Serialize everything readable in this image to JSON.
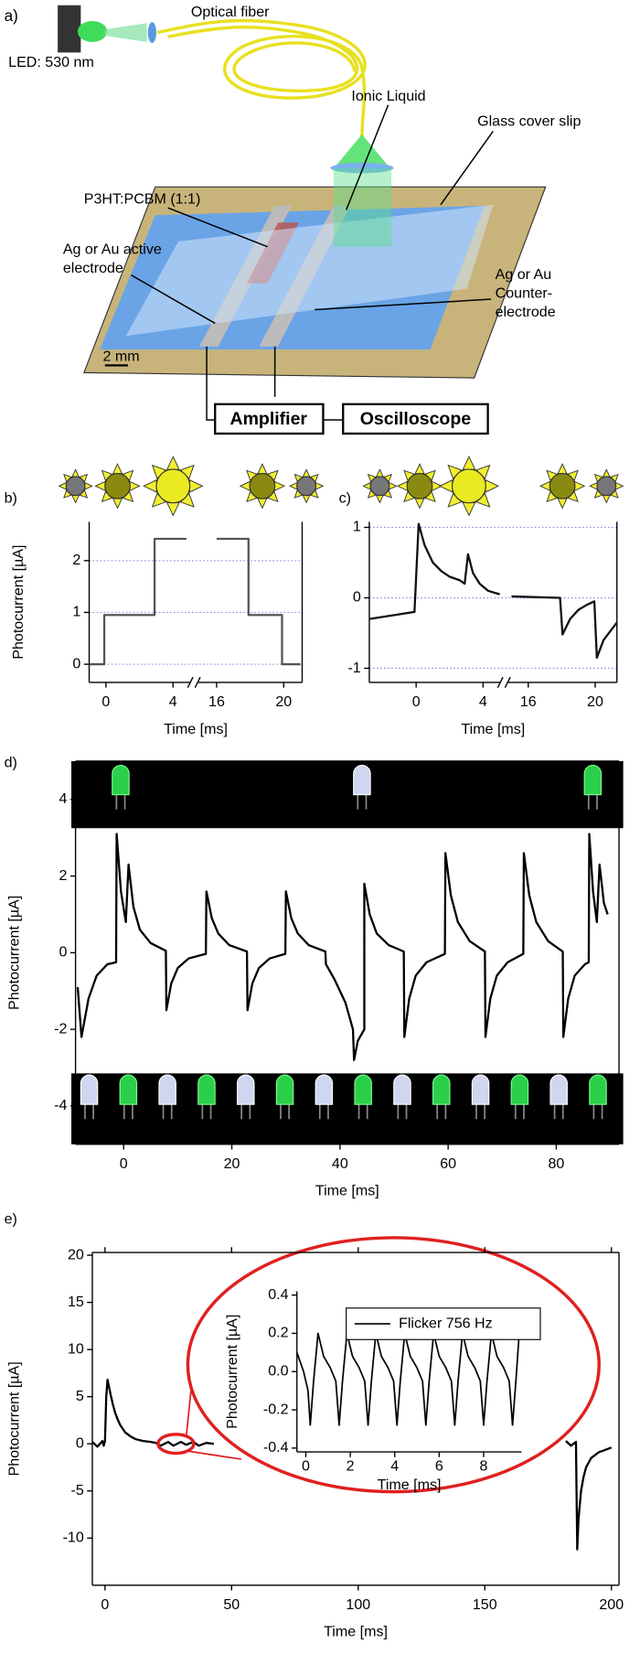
{
  "panel_a": {
    "label": "a)",
    "optical_fiber": "Optical fiber",
    "led": "LED: 530 nm",
    "ionic_liquid": "Ionic Liquid",
    "glass": "Glass cover slip",
    "p3ht": "P3HT:PCBM (1:1)",
    "active_electrode": [
      "Ag or Au active",
      "electrode"
    ],
    "counter_electrode": [
      "Ag or Au",
      "Counter-",
      "electrode"
    ],
    "scale_bar": "2 mm",
    "amplifier": "Amplifier",
    "oscilloscope": "Oscilloscope"
  },
  "chart_data": [
    {
      "type": "line",
      "label": "b)",
      "xlabel": "Time [ms]",
      "ylabel": "Photocurrent [µA]",
      "xlim": [
        -1,
        21.1
      ],
      "xbreak": [
        5,
        14.9
      ],
      "xticks": [
        0,
        4,
        16,
        20
      ],
      "ylim": [
        -0.35,
        2.75
      ],
      "yticks": [
        0,
        1,
        2
      ],
      "grid": true,
      "x": [
        -1,
        -0.1,
        -0.1,
        2.9,
        2.9,
        4.8,
        10,
        16,
        17.9,
        17.9,
        19.9,
        19.9,
        21
      ],
      "series": [
        {
          "color": "#555555",
          "values": [
            0,
            0,
            0.95,
            0.95,
            2.42,
            2.42,
            null,
            2.42,
            2.42,
            0.95,
            0.95,
            0,
            0
          ]
        }
      ]
    },
    {
      "type": "line",
      "label": "c)",
      "xlabel": "Time [ms]",
      "xlim": [
        -2.8,
        21.3
      ],
      "xbreak": [
        5,
        14.8
      ],
      "xticks": [
        0,
        4,
        16,
        20
      ],
      "ylim": [
        -1.2,
        1.08
      ],
      "yticks": [
        -1,
        0,
        1
      ],
      "grid": true,
      "x": [
        -2.8,
        -0.1,
        0.15,
        0.5,
        1,
        1.5,
        2,
        2.6,
        2.9,
        3.1,
        3.4,
        3.8,
        4.3,
        5,
        10,
        15,
        17.9,
        18.05,
        18.5,
        19,
        19.5,
        19.95,
        20.1,
        20.5,
        21.3
      ],
      "series": [
        {
          "color": "#111111",
          "values": [
            -0.3,
            -0.2,
            1.05,
            0.75,
            0.5,
            0.38,
            0.3,
            0.25,
            0.2,
            0.62,
            0.35,
            0.2,
            0.1,
            0.05,
            null,
            0.02,
            0,
            -0.52,
            -0.3,
            -0.17,
            -0.1,
            -0.05,
            -0.85,
            -0.6,
            -0.35
          ]
        }
      ]
    },
    {
      "type": "line",
      "label": "d)",
      "xlabel": "Time [ms]",
      "ylabel": "Photocurrent [µA]",
      "xlim": [
        -8.9,
        91.6
      ],
      "xticks": [
        0,
        20,
        40,
        60,
        80
      ],
      "ylim": [
        -5,
        5
      ],
      "yticks": [
        -4,
        -2,
        0,
        2,
        4
      ],
      "grid": false,
      "x": [
        -8.5,
        -7.8,
        -6.5,
        -5,
        -3,
        -1.4,
        -1.3,
        -0.5,
        0.4,
        0.9,
        1.8,
        3,
        5,
        7.8,
        7.9,
        8.8,
        10,
        12,
        15.2,
        15.3,
        16.3,
        17.5,
        19.5,
        22.8,
        22.9,
        23.8,
        25,
        27,
        29.9,
        30,
        31,
        32.2,
        34.2,
        37.3,
        37.4,
        39,
        41,
        42.4,
        42.6,
        43.3,
        44.5,
        44.5,
        45.5,
        46.8,
        49,
        51.8,
        51.9,
        52.8,
        54,
        56,
        59.4,
        59.5,
        60.5,
        61.8,
        64,
        66.8,
        66.9,
        67.8,
        69,
        71,
        73.9,
        74,
        75,
        76.3,
        78.5,
        81.2,
        81.3,
        82.2,
        83.4,
        85.3,
        86,
        86.1,
        86.8,
        87.5,
        88,
        88.8,
        89.5
      ],
      "series": [
        {
          "color": "#000000",
          "values": [
            -0.9,
            -2.2,
            -1.2,
            -0.6,
            -0.3,
            -0.25,
            3.1,
            1.6,
            0.8,
            2.3,
            1.2,
            0.6,
            0.25,
            0.05,
            -1.5,
            -0.8,
            -0.4,
            -0.15,
            -0.03,
            1.6,
            0.9,
            0.5,
            0.2,
            0.03,
            -1.5,
            -0.8,
            -0.4,
            -0.15,
            -0.03,
            1.6,
            0.9,
            0.5,
            0.2,
            0.03,
            -0.3,
            -0.7,
            -1.3,
            -2.0,
            -2.8,
            -2.3,
            -2.0,
            1.8,
            1.0,
            0.5,
            0.2,
            0.03,
            -2.2,
            -1.2,
            -0.6,
            -0.25,
            -0.03,
            2.6,
            1.5,
            0.8,
            0.3,
            0.03,
            -2.2,
            -1.2,
            -0.6,
            -0.25,
            -0.03,
            2.6,
            1.5,
            0.8,
            0.3,
            0.03,
            -2.2,
            -1.2,
            -0.6,
            -0.3,
            -0.25,
            3.1,
            1.6,
            0.8,
            2.3,
            1.3,
            1.0
          ]
        }
      ]
    },
    {
      "type": "line",
      "label": "e)",
      "xlabel": "Time [ms]",
      "ylabel": "Photocurrent [µA]",
      "xlim": [
        -5,
        203
      ],
      "xticks": [
        0,
        50,
        100,
        150,
        200
      ],
      "ylim": [
        -15,
        20.3
      ],
      "yticks": [
        -10,
        -5,
        0,
        5,
        10,
        15,
        20
      ],
      "grid": false,
      "x": [
        -5,
        -3,
        -1,
        -0.5,
        0,
        0.5,
        1,
        2,
        3,
        4,
        5,
        6,
        8,
        10,
        12,
        15,
        18,
        20,
        22,
        25,
        27,
        30,
        32,
        35,
        37,
        40,
        43,
        100,
        182,
        184,
        186,
        186.5,
        187,
        188,
        189,
        190,
        192,
        195,
        198,
        200
      ],
      "series": [
        {
          "color": "#000000",
          "values": [
            0.2,
            -0.3,
            0.3,
            -0.2,
            0.3,
            5,
            6.8,
            5.5,
            4.3,
            3.3,
            2.6,
            2.0,
            1.2,
            0.8,
            0.5,
            0.3,
            0.2,
            0.1,
            -0.2,
            0.2,
            -0.2,
            0.2,
            -0.1,
            0.2,
            -0.2,
            0.1,
            0.0,
            null,
            0.3,
            -0.2,
            0.2,
            -11.2,
            -8,
            -5,
            -3.5,
            -2.5,
            -1.5,
            -0.9,
            -0.6,
            -0.4
          ]
        }
      ]
    },
    {
      "type": "line",
      "xlabel": "Time [ms]",
      "ylabel": "Photocurrent [µA]",
      "xlim": [
        -0.4,
        9.7
      ],
      "xticks": [
        0,
        2,
        4,
        6,
        8
      ],
      "ylim": [
        -0.42,
        0.42
      ],
      "yticks": [
        -0.4,
        -0.2,
        {
          "value": 0,
          "label": "0.0"
        },
        0.2,
        0.4
      ],
      "grid": false,
      "x": [
        -0.4,
        -0.1,
        0.1,
        0.2,
        0.35,
        0.55,
        0.8,
        1.1,
        1.35,
        1.5,
        1.65,
        1.85,
        2.1,
        2.4,
        2.65,
        2.8,
        2.95,
        3.15,
        3.4,
        3.7,
        3.95,
        4.1,
        4.25,
        4.45,
        4.7,
        5.0,
        5.25,
        5.4,
        5.55,
        5.75,
        6.0,
        6.3,
        6.55,
        6.7,
        6.85,
        7.05,
        7.3,
        7.6,
        7.85,
        8.0,
        8.15,
        8.35,
        8.6,
        8.9,
        9.15,
        9.3,
        9.45,
        9.6
      ],
      "series": [
        {
          "name": "Flicker 756 Hz",
          "color": "#000000",
          "values": [
            0.1,
            0.0,
            -0.1,
            -0.28,
            -0.05,
            0.2,
            0.08,
            0.02,
            -0.05,
            -0.28,
            -0.05,
            0.2,
            0.08,
            0.02,
            -0.05,
            -0.28,
            -0.05,
            0.2,
            0.08,
            0.02,
            -0.05,
            -0.28,
            -0.05,
            0.2,
            0.08,
            0.02,
            -0.05,
            -0.28,
            -0.05,
            0.2,
            0.08,
            0.02,
            -0.05,
            -0.28,
            -0.05,
            0.2,
            0.08,
            0.02,
            -0.05,
            -0.28,
            -0.05,
            0.2,
            0.08,
            0.02,
            -0.05,
            -0.28,
            -0.05,
            0.2
          ]
        }
      ]
    }
  ]
}
